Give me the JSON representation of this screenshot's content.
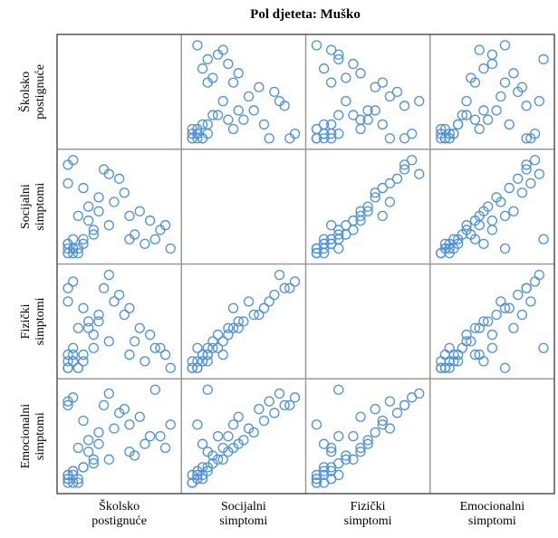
{
  "chart_data": {
    "type": "scatter-matrix",
    "title": "Pol djeteta: Muško",
    "color": "#4a90e2",
    "variables": [
      {
        "name": "Školsko postignuće",
        "values": [
          0,
          0,
          1,
          0,
          2,
          1,
          0,
          3,
          5,
          8,
          12,
          15,
          18,
          20,
          2,
          4,
          6,
          3,
          10,
          7,
          1,
          9,
          14,
          16,
          11,
          0,
          13,
          19,
          17,
          5,
          1,
          2,
          0,
          1,
          3,
          6,
          8,
          4,
          12,
          0
        ]
      },
      {
        "name": "Socijalni simptomi",
        "values": [
          0,
          1,
          0,
          2,
          1,
          3,
          0,
          2,
          4,
          6,
          3,
          2,
          5,
          1,
          8,
          10,
          12,
          14,
          16,
          18,
          20,
          11,
          9,
          7,
          13,
          15,
          4,
          6,
          3,
          5,
          1,
          0,
          2,
          1,
          3,
          9,
          17,
          7,
          8,
          19
        ]
      },
      {
        "name": "Fizički simptomi",
        "values": [
          0,
          0,
          1,
          1,
          0,
          2,
          0,
          2,
          3,
          4,
          2,
          1,
          3,
          0,
          6,
          7,
          8,
          9,
          11,
          12,
          13,
          10,
          6,
          5,
          8,
          10,
          4,
          2,
          3,
          5,
          1,
          0,
          2,
          3,
          1,
          7,
          14,
          6,
          9,
          12
        ]
      },
      {
        "name": "Emocionalni simptomi",
        "values": [
          0,
          1,
          0,
          2,
          1,
          3,
          2,
          4,
          5,
          6,
          8,
          10,
          12,
          15,
          9,
          11,
          13,
          16,
          18,
          20,
          22,
          14,
          17,
          12,
          19,
          21,
          7,
          9,
          24,
          6,
          3,
          0,
          1,
          2,
          4,
          10,
          23,
          8,
          15,
          20
        ]
      }
    ]
  }
}
